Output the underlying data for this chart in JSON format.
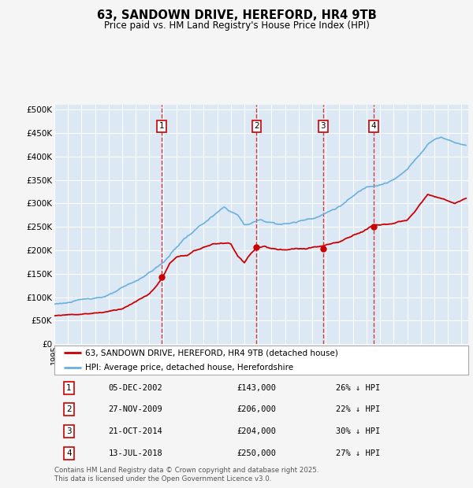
{
  "title": "63, SANDOWN DRIVE, HEREFORD, HR4 9TB",
  "subtitle": "Price paid vs. HM Land Registry's House Price Index (HPI)",
  "ylabel_values": [
    0,
    50000,
    100000,
    150000,
    200000,
    250000,
    300000,
    350000,
    400000,
    450000,
    500000
  ],
  "ylim": [
    0,
    510000
  ],
  "xlim_start": 1995.0,
  "xlim_end": 2025.5,
  "sale_dates": [
    2002.92,
    2009.9,
    2014.8,
    2018.53
  ],
  "sale_prices": [
    143000,
    206000,
    204000,
    250000
  ],
  "sale_labels": [
    "1",
    "2",
    "3",
    "4"
  ],
  "hpi_color": "#6ab0de",
  "price_color": "#cc0000",
  "background_color": "#dce9f5",
  "grid_color": "#ffffff",
  "legend_entries": [
    "63, SANDOWN DRIVE, HEREFORD, HR4 9TB (detached house)",
    "HPI: Average price, detached house, Herefordshire"
  ],
  "table_data": [
    [
      "1",
      "05-DEC-2002",
      "£143,000",
      "26% ↓ HPI"
    ],
    [
      "2",
      "27-NOV-2009",
      "£206,000",
      "22% ↓ HPI"
    ],
    [
      "3",
      "21-OCT-2014",
      "£204,000",
      "30% ↓ HPI"
    ],
    [
      "4",
      "13-JUL-2018",
      "£250,000",
      "27% ↓ HPI"
    ]
  ],
  "footnote": "Contains HM Land Registry data © Crown copyright and database right 2025.\nThis data is licensed under the Open Government Licence v3.0.",
  "fig_width": 6.0,
  "fig_height": 6.2,
  "hpi_waypoints": [
    [
      1995.0,
      85000
    ],
    [
      1997.0,
      93000
    ],
    [
      1999.0,
      105000
    ],
    [
      2001.0,
      130000
    ],
    [
      2003.0,
      170000
    ],
    [
      2004.5,
      220000
    ],
    [
      2006.0,
      255000
    ],
    [
      2007.5,
      285000
    ],
    [
      2008.5,
      270000
    ],
    [
      2009.0,
      248000
    ],
    [
      2009.5,
      252000
    ],
    [
      2010.0,
      258000
    ],
    [
      2011.0,
      255000
    ],
    [
      2012.0,
      253000
    ],
    [
      2013.0,
      258000
    ],
    [
      2014.0,
      268000
    ],
    [
      2015.0,
      280000
    ],
    [
      2016.0,
      295000
    ],
    [
      2017.0,
      315000
    ],
    [
      2018.0,
      335000
    ],
    [
      2019.0,
      345000
    ],
    [
      2020.0,
      355000
    ],
    [
      2021.0,
      375000
    ],
    [
      2022.0,
      410000
    ],
    [
      2022.5,
      430000
    ],
    [
      2023.0,
      440000
    ],
    [
      2023.5,
      445000
    ],
    [
      2024.0,
      440000
    ],
    [
      2024.5,
      435000
    ],
    [
      2025.3,
      430000
    ]
  ],
  "price_waypoints": [
    [
      1995.0,
      60000
    ],
    [
      1996.0,
      63000
    ],
    [
      1997.0,
      65000
    ],
    [
      1998.0,
      68000
    ],
    [
      1999.0,
      72000
    ],
    [
      2000.0,
      80000
    ],
    [
      2001.0,
      95000
    ],
    [
      2002.0,
      110000
    ],
    [
      2002.92,
      143000
    ],
    [
      2003.5,
      175000
    ],
    [
      2004.0,
      185000
    ],
    [
      2005.0,
      195000
    ],
    [
      2006.0,
      208000
    ],
    [
      2007.0,
      215000
    ],
    [
      2008.0,
      215000
    ],
    [
      2008.5,
      190000
    ],
    [
      2009.0,
      175000
    ],
    [
      2009.9,
      206000
    ],
    [
      2010.5,
      210000
    ],
    [
      2011.0,
      205000
    ],
    [
      2012.0,
      200000
    ],
    [
      2013.0,
      200000
    ],
    [
      2014.0,
      200000
    ],
    [
      2014.8,
      204000
    ],
    [
      2015.0,
      205000
    ],
    [
      2016.0,
      210000
    ],
    [
      2017.0,
      225000
    ],
    [
      2018.0,
      240000
    ],
    [
      2018.53,
      250000
    ],
    [
      2019.0,
      250000
    ],
    [
      2020.0,
      255000
    ],
    [
      2021.0,
      260000
    ],
    [
      2021.5,
      275000
    ],
    [
      2022.0,
      295000
    ],
    [
      2022.5,
      315000
    ],
    [
      2023.0,
      310000
    ],
    [
      2023.5,
      305000
    ],
    [
      2024.0,
      300000
    ],
    [
      2024.5,
      295000
    ],
    [
      2025.3,
      305000
    ]
  ]
}
